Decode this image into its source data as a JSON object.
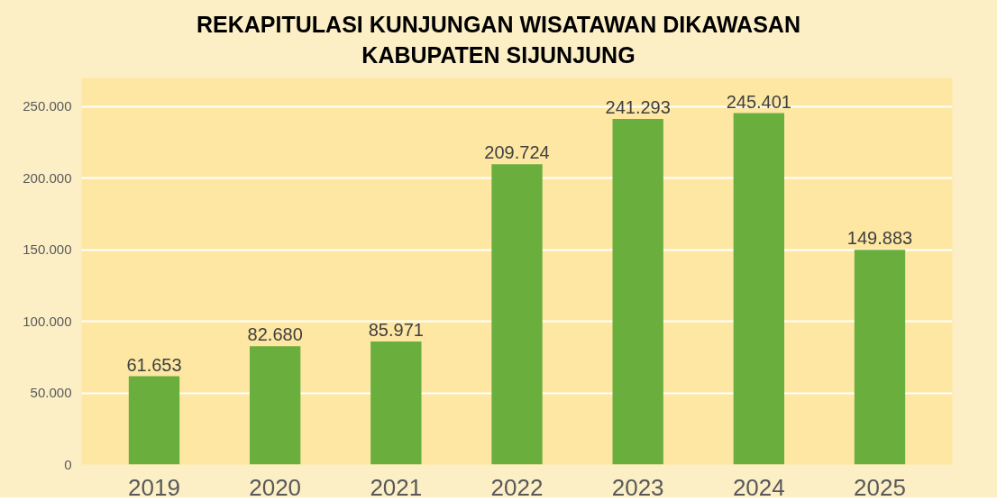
{
  "chart_data": {
    "type": "bar",
    "title": "REKAPITULASI KUNJUNGAN WISATAWAN DIKAWASAN\nKABUPATEN SIJUNJUNG",
    "categories": [
      "2019",
      "2020",
      "2021",
      "2022",
      "2023",
      "2024",
      "2025"
    ],
    "values": [
      61653,
      82680,
      85971,
      209724,
      241293,
      245401,
      149883
    ],
    "value_labels": [
      "61.653",
      "82.680",
      "85.971",
      "209.724",
      "241.293",
      "245.401",
      "149.883"
    ],
    "color": "#6aae3e",
    "ylim": [
      0,
      270000
    ],
    "yticks": [
      0,
      {
        "value": 50000,
        "label": "50.000"
      },
      {
        "value": 100000,
        "label": "100.000"
      },
      {
        "value": 150000,
        "label": "150.000"
      },
      {
        "value": 200000,
        "label": "200.000"
      },
      {
        "value": 250000,
        "label": "250.000"
      }
    ],
    "grid": "y"
  }
}
